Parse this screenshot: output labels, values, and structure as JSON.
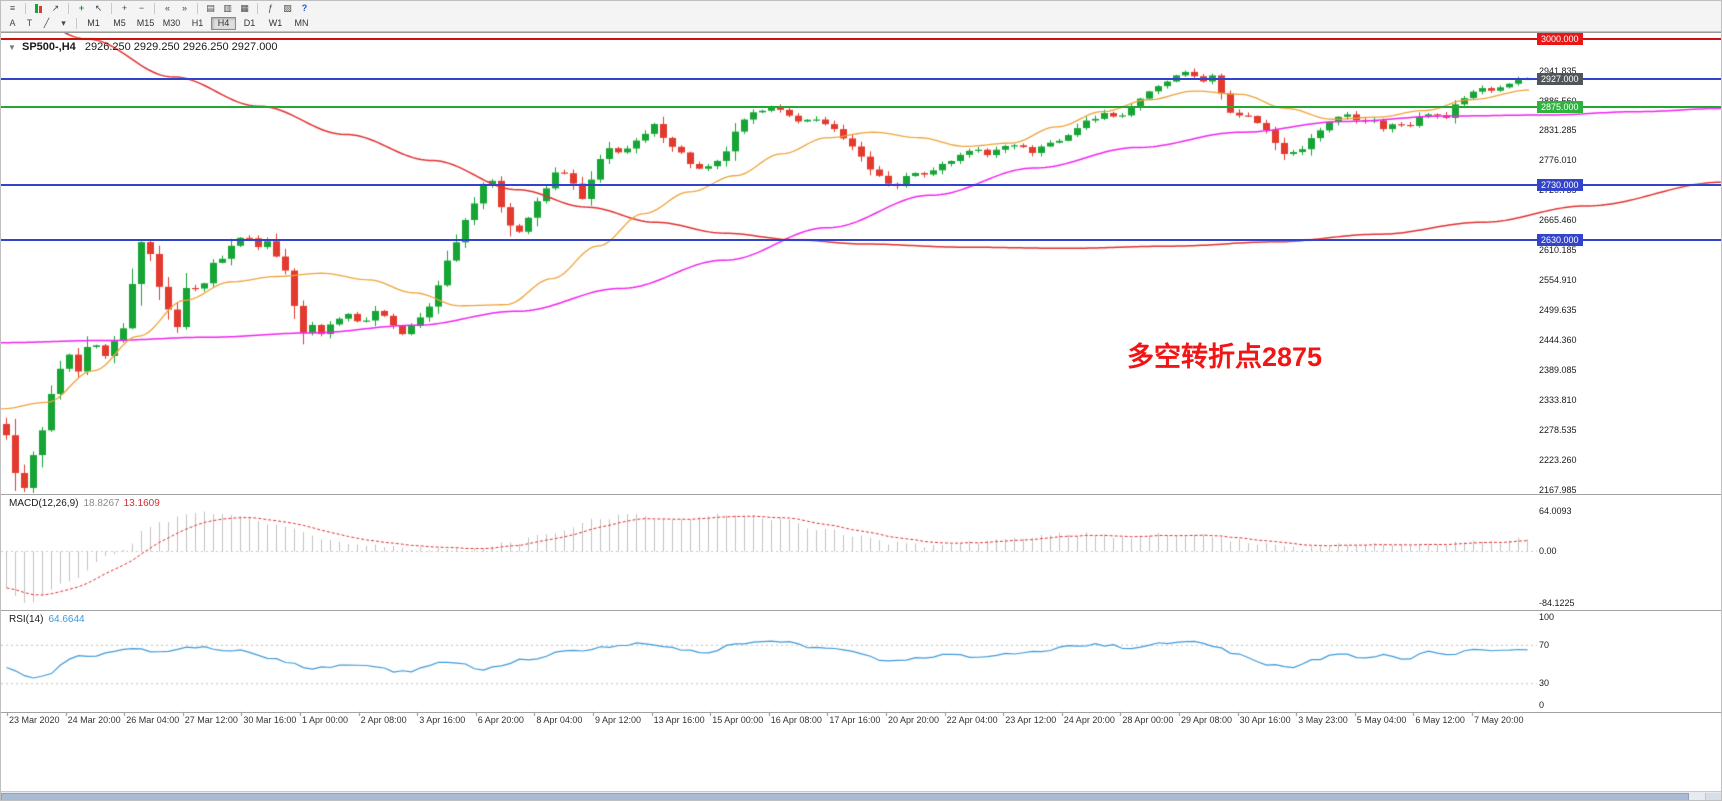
{
  "colors": {
    "up": "#16a535",
    "down": "#e33a2e",
    "ma_fast": "#eda339",
    "ma_mid": "#f025f0",
    "ma_long": "#e03131",
    "line_red": "#cc1111",
    "line_blue": "#3344cc",
    "line_green": "#22a833",
    "label_red_bg": "#e81717",
    "label_green_bg": "#2eb33e",
    "label_blue_bg": "#3344cc",
    "label_dark_bg": "#50555b",
    "macd_hist": "#c2c2c2",
    "macd_signal": "#dd3333",
    "rsi": "#3f9ad9",
    "annotation": "#f21515"
  },
  "toolbar": {
    "row1": [
      {
        "name": "menu-icon",
        "glyph": "≡"
      },
      {
        "type": "sep"
      },
      {
        "name": "chart-candles-icon",
        "type": "candle-pair"
      },
      {
        "name": "chart-line-icon",
        "glyph": "↗"
      },
      {
        "type": "sep"
      },
      {
        "name": "new-order-icon",
        "glyph": "+",
        "color": "#1f9e3d"
      },
      {
        "name": "cursor-icon",
        "glyph": "↖"
      },
      {
        "type": "sep"
      },
      {
        "name": "zoom-in-icon",
        "glyph": "+"
      },
      {
        "name": "zoom-out-icon",
        "glyph": "−"
      },
      {
        "type": "sep"
      },
      {
        "name": "scroll-left-icon",
        "glyph": "«"
      },
      {
        "name": "scroll-right-icon",
        "glyph": "»"
      },
      {
        "type": "sep"
      },
      {
        "name": "tile-horizontal-icon",
        "glyph": "▤"
      },
      {
        "name": "tile-vertical-icon",
        "glyph": "▥"
      },
      {
        "name": "cascade-windows-icon",
        "glyph": "▦"
      },
      {
        "type": "sep"
      },
      {
        "name": "indicators-icon",
        "glyph": "ƒ"
      },
      {
        "name": "navigator-icon",
        "glyph": "▨"
      },
      {
        "name": "help-icon",
        "glyph": "?",
        "color": "#2255cc"
      }
    ],
    "row2": [
      {
        "name": "text-tool",
        "glyph": "A"
      },
      {
        "name": "text-label-tool",
        "glyph": "T"
      },
      {
        "name": "trendline-tool",
        "glyph": "╱"
      },
      {
        "name": "draw-tools-dropdown",
        "glyph": "▾"
      }
    ],
    "timeframes": {
      "items": [
        "M1",
        "M5",
        "M15",
        "M30",
        "H1",
        "H4",
        "D1",
        "W1",
        "MN"
      ],
      "active": "H4"
    }
  },
  "chart": {
    "title_marker": "▼",
    "symbol_timeframe": "SP500-,H4",
    "ohlc": "2926.250 2929.250 2926.250 2927.000",
    "annotation": "多空转折点2875",
    "price_max": 3000,
    "price_min": 2164.635,
    "scale_ticks": [
      "2941.835",
      "2886.560",
      "2831.285",
      "2776.010",
      "2720.735",
      "2665.460",
      "2610.185",
      "2554.910",
      "2499.635",
      "2444.360",
      "2389.085",
      "2333.810",
      "2278.535",
      "2223.260",
      "2167.985"
    ],
    "hlines": [
      {
        "price": 3000,
        "label": "3000.000",
        "line": "line_red",
        "bg": "label_red_bg"
      },
      {
        "price": 2927,
        "label": "2927.000",
        "line": "line_blue",
        "bg": "label_dark_bg"
      },
      {
        "price": 2875,
        "label": "2875.000",
        "line": "line_green",
        "bg": "label_green_bg"
      },
      {
        "price": 2730,
        "label": "2730.000",
        "line": "line_blue",
        "bg": "label_blue_bg"
      },
      {
        "price": 2630,
        "label": "2630.000",
        "line": "line_blue",
        "bg": "label_blue_bg"
      }
    ]
  },
  "chart_data": {
    "type": "candlestick+indicators",
    "symbol": "SP500-",
    "timeframe": "H4",
    "bars": 170,
    "last_bar": {
      "open": 2926.25,
      "high": 2929.25,
      "low": 2926.25,
      "close": 2927.0
    },
    "period_high": 2941.835,
    "period_low": 2164.635,
    "price_path": [
      [
        0,
        2265
      ],
      [
        0.006,
        2205
      ],
      [
        0.012,
        2168
      ],
      [
        0.02,
        2245
      ],
      [
        0.03,
        2345
      ],
      [
        0.04,
        2415
      ],
      [
        0.048,
        2382
      ],
      [
        0.056,
        2442
      ],
      [
        0.064,
        2412
      ],
      [
        0.072,
        2448
      ],
      [
        0.078,
        2462
      ],
      [
        0.084,
        2562
      ],
      [
        0.09,
        2628
      ],
      [
        0.096,
        2605
      ],
      [
        0.102,
        2540
      ],
      [
        0.108,
        2488
      ],
      [
        0.113,
        2472
      ],
      [
        0.12,
        2548
      ],
      [
        0.128,
        2542
      ],
      [
        0.135,
        2582
      ],
      [
        0.142,
        2598
      ],
      [
        0.15,
        2622
      ],
      [
        0.157,
        2640
      ],
      [
        0.164,
        2618
      ],
      [
        0.17,
        2638
      ],
      [
        0.176,
        2605
      ],
      [
        0.183,
        2572
      ],
      [
        0.19,
        2512
      ],
      [
        0.196,
        2458
      ],
      [
        0.203,
        2472
      ],
      [
        0.21,
        2455
      ],
      [
        0.217,
        2488
      ],
      [
        0.224,
        2496
      ],
      [
        0.231,
        2475
      ],
      [
        0.238,
        2486
      ],
      [
        0.245,
        2502
      ],
      [
        0.252,
        2482
      ],
      [
        0.258,
        2452
      ],
      [
        0.265,
        2468
      ],
      [
        0.272,
        2485
      ],
      [
        0.279,
        2508
      ],
      [
        0.286,
        2558
      ],
      [
        0.293,
        2612
      ],
      [
        0.3,
        2662
      ],
      [
        0.308,
        2702
      ],
      [
        0.317,
        2748
      ],
      [
        0.324,
        2698
      ],
      [
        0.33,
        2662
      ],
      [
        0.337,
        2645
      ],
      [
        0.344,
        2672
      ],
      [
        0.351,
        2702
      ],
      [
        0.358,
        2738
      ],
      [
        0.364,
        2766
      ],
      [
        0.371,
        2738
      ],
      [
        0.377,
        2698
      ],
      [
        0.384,
        2738
      ],
      [
        0.391,
        2775
      ],
      [
        0.398,
        2800
      ],
      [
        0.405,
        2792
      ],
      [
        0.412,
        2805
      ],
      [
        0.419,
        2822
      ],
      [
        0.427,
        2840
      ],
      [
        0.434,
        2818
      ],
      [
        0.441,
        2795
      ],
      [
        0.449,
        2772
      ],
      [
        0.457,
        2758
      ],
      [
        0.465,
        2764
      ],
      [
        0.472,
        2792
      ],
      [
        0.48,
        2826
      ],
      [
        0.488,
        2856
      ],
      [
        0.497,
        2872
      ],
      [
        0.505,
        2880
      ],
      [
        0.512,
        2858
      ],
      [
        0.52,
        2846
      ],
      [
        0.528,
        2856
      ],
      [
        0.536,
        2845
      ],
      [
        0.544,
        2836
      ],
      [
        0.552,
        2812
      ],
      [
        0.56,
        2786
      ],
      [
        0.568,
        2762
      ],
      [
        0.576,
        2742
      ],
      [
        0.583,
        2726
      ],
      [
        0.59,
        2742
      ],
      [
        0.597,
        2756
      ],
      [
        0.604,
        2748
      ],
      [
        0.612,
        2765
      ],
      [
        0.62,
        2775
      ],
      [
        0.628,
        2788
      ],
      [
        0.636,
        2798
      ],
      [
        0.644,
        2785
      ],
      [
        0.652,
        2798
      ],
      [
        0.66,
        2810
      ],
      [
        0.668,
        2798
      ],
      [
        0.676,
        2792
      ],
      [
        0.684,
        2808
      ],
      [
        0.692,
        2812
      ],
      [
        0.7,
        2826
      ],
      [
        0.708,
        2846
      ],
      [
        0.716,
        2856
      ],
      [
        0.724,
        2862
      ],
      [
        0.732,
        2858
      ],
      [
        0.74,
        2876
      ],
      [
        0.748,
        2895
      ],
      [
        0.756,
        2910
      ],
      [
        0.764,
        2922
      ],
      [
        0.772,
        2934
      ],
      [
        0.778,
        2938
      ],
      [
        0.785,
        2922
      ],
      [
        0.792,
        2932
      ],
      [
        0.8,
        2895
      ],
      [
        0.807,
        2856
      ],
      [
        0.814,
        2864
      ],
      [
        0.821,
        2850
      ],
      [
        0.828,
        2832
      ],
      [
        0.835,
        2806
      ],
      [
        0.842,
        2786
      ],
      [
        0.85,
        2796
      ],
      [
        0.858,
        2815
      ],
      [
        0.866,
        2838
      ],
      [
        0.874,
        2856
      ],
      [
        0.882,
        2862
      ],
      [
        0.89,
        2848
      ],
      [
        0.898,
        2852
      ],
      [
        0.906,
        2836
      ],
      [
        0.914,
        2844
      ],
      [
        0.922,
        2840
      ],
      [
        0.93,
        2856
      ],
      [
        0.938,
        2864
      ],
      [
        0.946,
        2856
      ],
      [
        0.954,
        2880
      ],
      [
        0.962,
        2900
      ],
      [
        0.97,
        2910
      ],
      [
        0.978,
        2906
      ],
      [
        0.986,
        2918
      ],
      [
        0.993,
        2924
      ],
      [
        1,
        2927
      ]
    ],
    "ma_fast_path": [
      [
        0,
        2318
      ],
      [
        0.03,
        2330
      ],
      [
        0.06,
        2388
      ],
      [
        0.09,
        2452
      ],
      [
        0.12,
        2518
      ],
      [
        0.15,
        2552
      ],
      [
        0.18,
        2562
      ],
      [
        0.21,
        2568
      ],
      [
        0.24,
        2556
      ],
      [
        0.27,
        2532
      ],
      [
        0.3,
        2508
      ],
      [
        0.33,
        2510
      ],
      [
        0.36,
        2558
      ],
      [
        0.39,
        2618
      ],
      [
        0.42,
        2678
      ],
      [
        0.45,
        2718
      ],
      [
        0.48,
        2748
      ],
      [
        0.51,
        2788
      ],
      [
        0.54,
        2818
      ],
      [
        0.57,
        2828
      ],
      [
        0.6,
        2818
      ],
      [
        0.63,
        2802
      ],
      [
        0.66,
        2808
      ],
      [
        0.69,
        2838
      ],
      [
        0.72,
        2866
      ],
      [
        0.75,
        2888
      ],
      [
        0.78,
        2904
      ],
      [
        0.81,
        2898
      ],
      [
        0.84,
        2872
      ],
      [
        0.87,
        2852
      ],
      [
        0.9,
        2856
      ],
      [
        0.93,
        2868
      ],
      [
        0.96,
        2888
      ],
      [
        1,
        2906
      ]
    ],
    "ma_mid_path": [
      [
        0,
        2440
      ],
      [
        0.06,
        2444
      ],
      [
        0.12,
        2450
      ],
      [
        0.18,
        2458
      ],
      [
        0.24,
        2472
      ],
      [
        0.3,
        2498
      ],
      [
        0.36,
        2540
      ],
      [
        0.42,
        2592
      ],
      [
        0.48,
        2652
      ],
      [
        0.54,
        2712
      ],
      [
        0.6,
        2762
      ],
      [
        0.66,
        2800
      ],
      [
        0.72,
        2828
      ],
      [
        0.78,
        2848
      ],
      [
        0.84,
        2858
      ],
      [
        0.9,
        2860
      ],
      [
        0.95,
        2866
      ],
      [
        1,
        2872
      ]
    ],
    "ma_long_path": [
      [
        0,
        3075
      ],
      [
        0.05,
        3000
      ],
      [
        0.1,
        2930
      ],
      [
        0.15,
        2876
      ],
      [
        0.2,
        2824
      ],
      [
        0.25,
        2776
      ],
      [
        0.3,
        2722
      ],
      [
        0.34,
        2690
      ],
      [
        0.38,
        2662
      ],
      [
        0.42,
        2642
      ],
      [
        0.46,
        2630
      ],
      [
        0.5,
        2622
      ],
      [
        0.56,
        2616
      ],
      [
        0.62,
        2614
      ],
      [
        0.68,
        2618
      ],
      [
        0.74,
        2626
      ],
      [
        0.8,
        2640
      ],
      [
        0.86,
        2662
      ],
      [
        0.92,
        2692
      ],
      [
        1,
        2736
      ]
    ],
    "macd": {
      "label": "MACD(12,26,9)",
      "value_main": "18.8267",
      "value_signal": "13.1609",
      "scale": [
        "64.0093",
        "0.00",
        "-84.1225"
      ],
      "path": [
        [
          0,
          -60
        ],
        [
          0.013,
          -84
        ],
        [
          0.04,
          -52
        ],
        [
          0.07,
          -4
        ],
        [
          0.1,
          46
        ],
        [
          0.125,
          62
        ],
        [
          0.155,
          56
        ],
        [
          0.18,
          40
        ],
        [
          0.21,
          20
        ],
        [
          0.24,
          8
        ],
        [
          0.27,
          4
        ],
        [
          0.3,
          2
        ],
        [
          0.33,
          12
        ],
        [
          0.36,
          32
        ],
        [
          0.385,
          50
        ],
        [
          0.41,
          58
        ],
        [
          0.435,
          50
        ],
        [
          0.46,
          56
        ],
        [
          0.485,
          60
        ],
        [
          0.51,
          50
        ],
        [
          0.535,
          36
        ],
        [
          0.56,
          24
        ],
        [
          0.585,
          12
        ],
        [
          0.61,
          7
        ],
        [
          0.635,
          13
        ],
        [
          0.66,
          20
        ],
        [
          0.685,
          26
        ],
        [
          0.71,
          27
        ],
        [
          0.735,
          22
        ],
        [
          0.76,
          27
        ],
        [
          0.785,
          28
        ],
        [
          0.81,
          17
        ],
        [
          0.835,
          9
        ],
        [
          0.86,
          4
        ],
        [
          0.885,
          12
        ],
        [
          0.91,
          10
        ],
        [
          0.935,
          9
        ],
        [
          0.96,
          14
        ],
        [
          0.98,
          16
        ],
        [
          1,
          18.8267
        ]
      ]
    },
    "rsi": {
      "label": "RSI(14)",
      "value": "64.6644",
      "levels": [
        70,
        30
      ],
      "scale": [
        "100",
        "70",
        "30",
        "0"
      ],
      "path": [
        [
          0,
          45
        ],
        [
          0.02,
          36
        ],
        [
          0.05,
          58
        ],
        [
          0.08,
          66
        ],
        [
          0.1,
          62
        ],
        [
          0.125,
          68
        ],
        [
          0.15,
          64
        ],
        [
          0.175,
          55
        ],
        [
          0.2,
          46
        ],
        [
          0.23,
          50
        ],
        [
          0.26,
          42
        ],
        [
          0.29,
          52
        ],
        [
          0.315,
          45
        ],
        [
          0.34,
          54
        ],
        [
          0.37,
          64
        ],
        [
          0.4,
          69
        ],
        [
          0.42,
          72
        ],
        [
          0.44,
          66
        ],
        [
          0.46,
          62
        ],
        [
          0.48,
          70
        ],
        [
          0.505,
          74
        ],
        [
          0.53,
          68
        ],
        [
          0.555,
          63
        ],
        [
          0.58,
          52
        ],
        [
          0.6,
          57
        ],
        [
          0.62,
          60
        ],
        [
          0.64,
          56
        ],
        [
          0.66,
          60
        ],
        [
          0.68,
          64
        ],
        [
          0.7,
          68
        ],
        [
          0.72,
          70
        ],
        [
          0.74,
          66
        ],
        [
          0.76,
          71
        ],
        [
          0.775,
          74
        ],
        [
          0.79,
          70
        ],
        [
          0.81,
          60
        ],
        [
          0.83,
          50
        ],
        [
          0.845,
          46
        ],
        [
          0.86,
          55
        ],
        [
          0.875,
          61
        ],
        [
          0.89,
          56
        ],
        [
          0.905,
          60
        ],
        [
          0.92,
          55
        ],
        [
          0.935,
          62
        ],
        [
          0.95,
          60
        ],
        [
          0.965,
          66
        ],
        [
          0.98,
          63
        ],
        [
          1,
          64.6644
        ]
      ]
    },
    "x_labels": [
      "23 Mar 2020",
      "24 Mar 20:00",
      "26 Mar 04:00",
      "27 Mar 12:00",
      "30 Mar 16:00",
      "1 Apr 00:00",
      "2 Apr 08:00",
      "3 Apr 16:00",
      "6 Apr 20:00",
      "8 Apr 04:00",
      "9 Apr 12:00",
      "13 Apr 16:00",
      "15 Apr 00:00",
      "16 Apr 08:00",
      "17 Apr 16:00",
      "20 Apr 20:00",
      "22 Apr 04:00",
      "23 Apr 12:00",
      "24 Apr 20:00",
      "28 Apr 00:00",
      "29 Apr 08:00",
      "30 Apr 16:00",
      "3 May 23:00",
      "5 May 04:00",
      "6 May 12:00",
      "7 May 20:00"
    ]
  }
}
